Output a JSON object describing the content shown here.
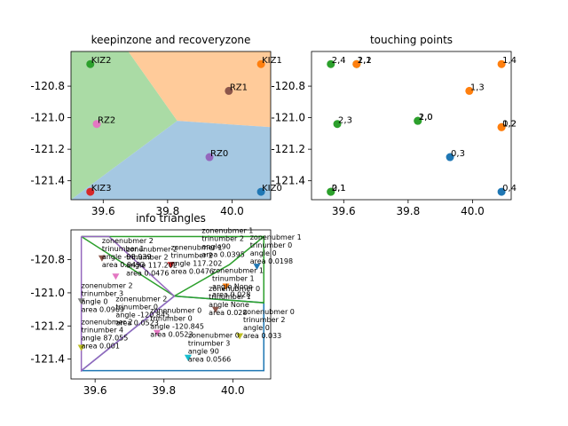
{
  "chart_data": [
    {
      "type": "scatter",
      "title": "keepinzone and recoveryzone",
      "xlim": [
        39.5,
        40.12
      ],
      "ylim": [
        -121.52,
        -120.58
      ],
      "xticks": [
        "39.6",
        "39.8",
        "40.0"
      ],
      "xtick_values": [
        39.6,
        39.8,
        40.0
      ],
      "yticks": [
        "-120.8",
        "-121.0",
        "-121.2",
        "-121.4"
      ],
      "ytick_values": [
        -120.8,
        -121.0,
        -121.2,
        -121.4
      ],
      "regions": [
        {
          "color": "#aadba5",
          "points": [
            [
              39.5,
              -120.58
            ],
            [
              39.678,
              -120.58
            ],
            [
              39.83,
              -121.02
            ],
            [
              39.5,
              -121.52
            ]
          ]
        },
        {
          "color": "#ffcb9a",
          "points": [
            [
              39.678,
              -120.58
            ],
            [
              40.12,
              -120.58
            ],
            [
              40.12,
              -121.06
            ],
            [
              39.83,
              -121.02
            ]
          ]
        },
        {
          "color": "#a5c8e2",
          "points": [
            [
              39.83,
              -121.02
            ],
            [
              40.12,
              -121.06
            ],
            [
              40.12,
              -121.52
            ],
            [
              39.5,
              -121.52
            ]
          ]
        }
      ],
      "points": [
        {
          "label": "KIZ2",
          "x": 39.56,
          "y": -120.66,
          "color": "#2ca02c"
        },
        {
          "label": "KIZ1",
          "x": 40.09,
          "y": -120.66,
          "color": "#ff7f0e"
        },
        {
          "label": "RZ1",
          "x": 39.99,
          "y": -120.83,
          "color": "#8c564b"
        },
        {
          "label": "RZ2",
          "x": 39.58,
          "y": -121.04,
          "color": "#e377c2"
        },
        {
          "label": "RZ0",
          "x": 39.93,
          "y": -121.25,
          "color": "#9467bd"
        },
        {
          "label": "KIZ3",
          "x": 39.56,
          "y": -121.47,
          "color": "#d62728"
        },
        {
          "label": "KIZ0",
          "x": 40.09,
          "y": -121.47,
          "color": "#1f77b4"
        }
      ]
    },
    {
      "type": "scatter",
      "title": "touching points",
      "xlim": [
        39.5,
        40.12
      ],
      "ylim": [
        -121.52,
        -120.58
      ],
      "xticks": [
        "39.6",
        "39.8",
        "40.0"
      ],
      "xtick_values": [
        39.6,
        39.8,
        40.0
      ],
      "yticks": [
        "-120.8",
        "-121.0",
        "-121.2",
        "-121.4"
      ],
      "ytick_values": [
        -120.8,
        -121.0,
        -121.2,
        -121.4
      ],
      "points": [
        {
          "label": "2,4",
          "x": 39.56,
          "y": -120.66,
          "color": "#2ca02c"
        },
        {
          "label": "2,2",
          "x": 39.64,
          "y": -120.66,
          "color": "#2ca02c"
        },
        {
          "label": "1,1",
          "x": 39.64,
          "y": -120.66,
          "color": "#ff7f0e"
        },
        {
          "label": "1,4",
          "x": 40.09,
          "y": -120.66,
          "color": "#ff7f0e"
        },
        {
          "label": "1,3",
          "x": 39.99,
          "y": -120.83,
          "color": "#ff7f0e"
        },
        {
          "label": "2,3",
          "x": 39.58,
          "y": -121.04,
          "color": "#2ca02c"
        },
        {
          "label": "2,0",
          "x": 39.83,
          "y": -121.02,
          "color": "#2ca02c"
        },
        {
          "label": "1,0",
          "x": 39.83,
          "y": -121.02,
          "color": "#2ca02c"
        },
        {
          "label": "1,2",
          "x": 40.09,
          "y": -121.06,
          "color": "#ff7f0e"
        },
        {
          "label": "0,2",
          "x": 40.09,
          "y": -121.06,
          "color": "#ff7f0e"
        },
        {
          "label": "0,3",
          "x": 39.93,
          "y": -121.25,
          "color": "#1f77b4"
        },
        {
          "label": "2,1",
          "x": 39.56,
          "y": -121.47,
          "color": "#2ca02c"
        },
        {
          "label": "0,1",
          "x": 39.56,
          "y": -121.47,
          "color": "#2ca02c"
        },
        {
          "label": "0,4",
          "x": 40.09,
          "y": -121.47,
          "color": "#1f77b4"
        }
      ]
    },
    {
      "type": "scatter",
      "title": "info triangles",
      "xlim": [
        39.53,
        40.11
      ],
      "ylim": [
        -121.52,
        -120.62
      ],
      "xticks": [
        "39.6",
        "39.8",
        "40.0"
      ],
      "xtick_values": [
        39.6,
        39.8,
        40.0
      ],
      "yticks": [
        "-120.8",
        "-121.0",
        "-121.2",
        "-121.4"
      ],
      "ytick_values": [
        -120.8,
        -121.0,
        -121.2,
        -121.4
      ],
      "lines": [
        {
          "color": "#1f77b4",
          "points": [
            [
              39.56,
              -121.47
            ],
            [
              40.09,
              -121.47
            ],
            [
              40.09,
              -121.06
            ],
            [
              39.83,
              -121.02
            ],
            [
              39.56,
              -121.47
            ]
          ]
        },
        {
          "color": "#2ca02c",
          "points": [
            [
              39.56,
              -120.66
            ],
            [
              40.09,
              -120.66
            ],
            [
              39.99,
              -120.83
            ],
            [
              39.83,
              -121.02
            ],
            [
              39.56,
              -120.66
            ]
          ]
        },
        {
          "color": "#2ca02c",
          "points": [
            [
              40.09,
              -120.66
            ],
            [
              40.09,
              -121.06
            ],
            [
              39.83,
              -121.02
            ]
          ]
        },
        {
          "color": "#9467bd",
          "points": [
            [
              39.56,
              -120.66
            ],
            [
              39.64,
              -120.66
            ],
            [
              39.83,
              -121.02
            ],
            [
              39.56,
              -121.47
            ],
            [
              39.56,
              -120.66
            ]
          ]
        }
      ],
      "markers": [
        {
          "x": 39.62,
          "y": -120.79,
          "color": "#8c564b"
        },
        {
          "x": 39.82,
          "y": -120.83,
          "color": "#d62728"
        },
        {
          "x": 39.66,
          "y": -120.9,
          "color": "#e377c2"
        },
        {
          "x": 39.56,
          "y": -121.05,
          "color": "#7f7f7f"
        },
        {
          "x": 40.07,
          "y": -120.84,
          "color": "#1f77b4"
        },
        {
          "x": 39.98,
          "y": -120.96,
          "color": "#ff7f0e"
        },
        {
          "x": 39.95,
          "y": -121.1,
          "color": "#8c564b"
        },
        {
          "x": 39.78,
          "y": -121.24,
          "color": "#e377c2"
        },
        {
          "x": 39.56,
          "y": -121.33,
          "color": "#bcbd22"
        },
        {
          "x": 40.02,
          "y": -121.26,
          "color": "#bcbd22"
        },
        {
          "x": 39.87,
          "y": -121.39,
          "color": "#17becf"
        }
      ],
      "annotations": [
        {
          "x": 39.62,
          "y": -120.7,
          "lines": [
            "zonenubmer 2",
            "trinumber 1",
            "angle -98.939",
            "area 0.0493"
          ]
        },
        {
          "x": 39.69,
          "y": -120.75,
          "lines": [
            "zonenubmer 2",
            "trinumber 2",
            "angle 117.202",
            "area 0.0476"
          ]
        },
        {
          "x": 39.82,
          "y": -120.74,
          "lines": [
            "zonenubmer 1",
            "trinumber 2",
            "angle 117.202",
            "area 0.0476"
          ]
        },
        {
          "x": 39.91,
          "y": -120.64,
          "lines": [
            "zonenubmer 1",
            "trinumber 2",
            "angle90",
            "area 0.0395"
          ]
        },
        {
          "x": 40.05,
          "y": -120.68,
          "lines": [
            "zonenubmer 1",
            "trinumber 0",
            "angle 0",
            "area 0.0198"
          ]
        },
        {
          "x": 39.56,
          "y": -120.97,
          "lines": [
            "zonenubmer 2",
            "trinumber 3",
            "angle 0",
            "area 0.0969"
          ]
        },
        {
          "x": 39.94,
          "y": -120.88,
          "lines": [
            "zonenubmer 1",
            "trinumber 1",
            "angle None",
            "area 0.028"
          ]
        },
        {
          "x": 39.66,
          "y": -121.05,
          "lines": [
            "zonenubmer 2",
            "trinumber 0",
            "angle -120.845",
            "area 0.0523"
          ]
        },
        {
          "x": 39.93,
          "y": -120.99,
          "lines": [
            "zonenubmer 0",
            "trinumber 1",
            "angle None",
            "area 0.028"
          ]
        },
        {
          "x": 39.76,
          "y": -121.12,
          "lines": [
            "zonenubmer 0",
            "trinumber 0",
            "angle -120.845",
            "area 0.0523"
          ]
        },
        {
          "x": 39.56,
          "y": -121.19,
          "lines": [
            "zonenubmer 2",
            "trinumber 4",
            "angle 87.055",
            "area 0.001"
          ]
        },
        {
          "x": 40.03,
          "y": -121.13,
          "lines": [
            "zonenubmer 0",
            "trinumber 2",
            "angle 0",
            "area 0.033"
          ]
        },
        {
          "x": 39.87,
          "y": -121.27,
          "lines": [
            "zonenubmer 0",
            "trinumber 3",
            "angle 90",
            "area 0.0566"
          ]
        }
      ]
    }
  ]
}
